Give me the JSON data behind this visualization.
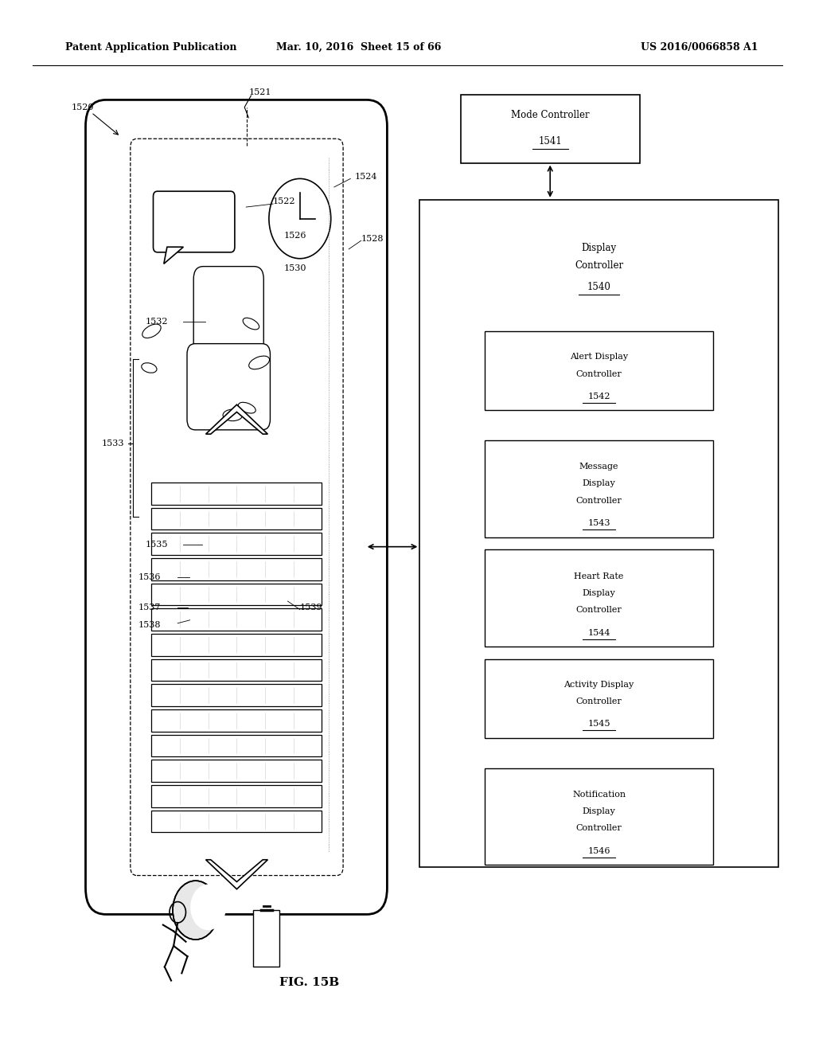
{
  "bg_color": "#ffffff",
  "header_left": "Patent Application Publication",
  "header_center": "Mar. 10, 2016  Sheet 15 of 66",
  "header_right": "US 2016/0066858 A1",
  "caption": "FIG. 15B",
  "mode_controller_label": "Mode Controller",
  "mode_controller_id": "1541",
  "sub_boxes": [
    {
      "label": "Alert Display\nController",
      "id": "1542"
    },
    {
      "label": "Message\nDisplay\nController",
      "id": "1543"
    },
    {
      "label": "Heart Rate\nDisplay\nController",
      "id": "1544"
    },
    {
      "label": "Activity Display\nController",
      "id": "1545"
    },
    {
      "label": "Notification\nDisplay\nController",
      "id": "1546"
    }
  ]
}
